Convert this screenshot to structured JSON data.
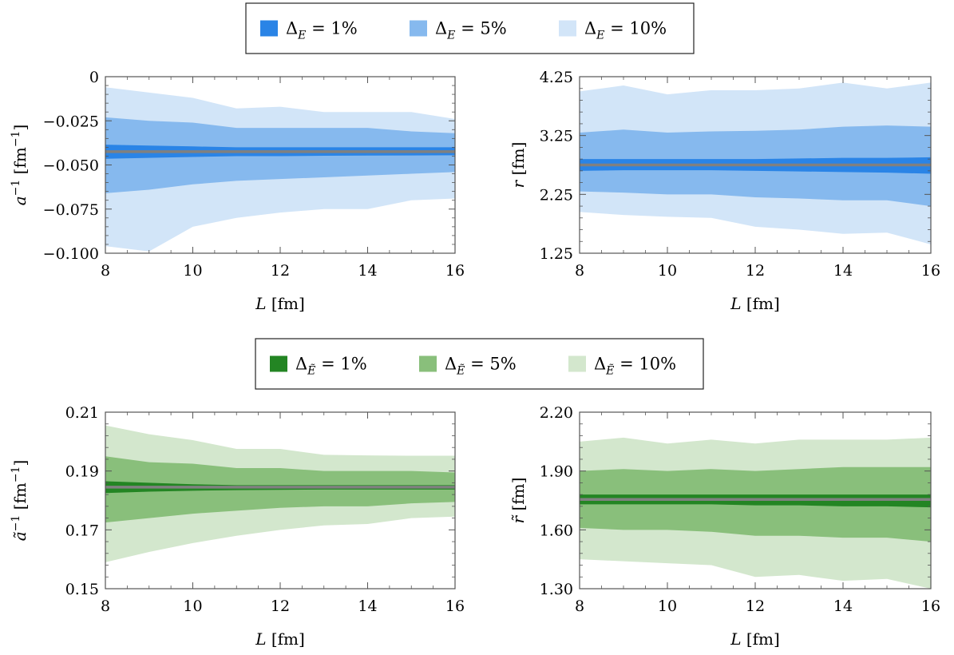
{
  "legends": [
    {
      "items": [
        {
          "label_main": "Δ",
          "label_sub": "E",
          "label_rest": " = 1%",
          "color": "#2a84e6"
        },
        {
          "label_main": "Δ",
          "label_sub": "E",
          "label_rest": " = 5%",
          "color": "#86b9ee"
        },
        {
          "label_main": "Δ",
          "label_sub": "E",
          "label_rest": " = 10%",
          "color": "#d2e5f8"
        }
      ]
    },
    {
      "items": [
        {
          "label_main": "Δ",
          "label_sub": "Ẽ",
          "label_rest": " = 1%",
          "color": "#238523"
        },
        {
          "label_main": "Δ",
          "label_sub": "Ẽ",
          "label_rest": " = 5%",
          "color": "#89bf7b"
        },
        {
          "label_main": "Δ",
          "label_sub": "Ẽ",
          "label_rest": " = 10%",
          "color": "#d3e7cd"
        }
      ]
    }
  ],
  "chart_data": [
    {
      "type": "area",
      "xlabel_var": "L",
      "xlabel_unit": " [fm]",
      "ylabel_var": "a",
      "ylabel_sup": "−1",
      "ylabel_unit": " [fm",
      "ylabel_unit_sup": "−1",
      "ylabel_close": "]",
      "xlim": [
        8,
        16
      ],
      "ylim": [
        -0.1,
        0
      ],
      "xticks": [
        8,
        10,
        12,
        14,
        16
      ],
      "yticks": [
        0,
        -0.025,
        -0.05,
        -0.075,
        -0.1
      ],
      "ytick_labels": [
        "0",
        "−0.025",
        "−0.050",
        "−0.075",
        "−0.100"
      ],
      "x": [
        8,
        9,
        10,
        11,
        12,
        13,
        14,
        15,
        16
      ],
      "central": [
        -0.0425,
        -0.0425,
        -0.0425,
        -0.0425,
        -0.0425,
        -0.0425,
        -0.0425,
        -0.0425,
        -0.0425
      ],
      "central_color": "#808080",
      "bands": [
        {
          "label": "Δ_E = 10%",
          "color": "#d2e5f8",
          "upper": [
            -0.006,
            -0.009,
            -0.012,
            -0.018,
            -0.017,
            -0.02,
            -0.02,
            -0.02,
            -0.024
          ],
          "lower": [
            -0.096,
            -0.099,
            -0.085,
            -0.08,
            -0.077,
            -0.075,
            -0.075,
            -0.07,
            -0.069
          ]
        },
        {
          "label": "Δ_E = 5%",
          "color": "#86b9ee",
          "upper": [
            -0.023,
            -0.025,
            -0.026,
            -0.029,
            -0.029,
            -0.029,
            -0.029,
            -0.031,
            -0.032
          ],
          "lower": [
            -0.066,
            -0.064,
            -0.061,
            -0.059,
            -0.058,
            -0.057,
            -0.056,
            -0.055,
            -0.054
          ]
        },
        {
          "label": "Δ_E = 1%",
          "color": "#2a84e6",
          "upper": [
            -0.0385,
            -0.039,
            -0.0395,
            -0.04,
            -0.04,
            -0.04,
            -0.04,
            -0.04,
            -0.04
          ],
          "lower": [
            -0.0465,
            -0.046,
            -0.0455,
            -0.045,
            -0.045,
            -0.0448,
            -0.0447,
            -0.0446,
            -0.0445
          ]
        }
      ]
    },
    {
      "type": "area",
      "xlabel_var": "L",
      "xlabel_unit": " [fm]",
      "ylabel_var": "r",
      "ylabel_sup": "",
      "ylabel_unit": " [fm]",
      "ylabel_unit_sup": "",
      "ylabel_close": "",
      "xlim": [
        8,
        16
      ],
      "ylim": [
        1.25,
        4.25
      ],
      "xticks": [
        8,
        10,
        12,
        14,
        16
      ],
      "yticks": [
        4.25,
        3.25,
        2.25,
        1.25
      ],
      "ytick_labels": [
        "4.25",
        "3.25",
        "2.25",
        "1.25"
      ],
      "x": [
        8,
        9,
        10,
        11,
        12,
        13,
        14,
        15,
        16
      ],
      "central": [
        2.75,
        2.75,
        2.75,
        2.75,
        2.75,
        2.75,
        2.75,
        2.75,
        2.75
      ],
      "central_color": "#808080",
      "bands": [
        {
          "label": "Δ_E = 10%",
          "color": "#d2e5f8",
          "upper": [
            4.0,
            4.1,
            3.95,
            4.02,
            4.02,
            4.05,
            4.15,
            4.05,
            4.15
          ],
          "lower": [
            1.95,
            1.9,
            1.87,
            1.85,
            1.7,
            1.65,
            1.58,
            1.6,
            1.4
          ]
        },
        {
          "label": "Δ_E = 5%",
          "color": "#86b9ee",
          "upper": [
            3.3,
            3.35,
            3.3,
            3.32,
            3.33,
            3.35,
            3.4,
            3.42,
            3.4
          ],
          "lower": [
            2.3,
            2.28,
            2.25,
            2.25,
            2.2,
            2.18,
            2.15,
            2.15,
            2.05
          ]
        },
        {
          "label": "Δ_E = 1%",
          "color": "#2a84e6",
          "upper": [
            2.85,
            2.85,
            2.85,
            2.85,
            2.85,
            2.86,
            2.87,
            2.87,
            2.88
          ],
          "lower": [
            2.65,
            2.66,
            2.66,
            2.66,
            2.65,
            2.64,
            2.63,
            2.62,
            2.6
          ]
        }
      ]
    },
    {
      "type": "area",
      "xlabel_var": "L",
      "xlabel_unit": " [fm]",
      "ylabel_var": "ã",
      "ylabel_sup": "−1",
      "ylabel_unit": " [fm",
      "ylabel_unit_sup": "−1",
      "ylabel_close": "]",
      "xlim": [
        8,
        16
      ],
      "ylim": [
        0.15,
        0.21
      ],
      "xticks": [
        8,
        10,
        12,
        14,
        16
      ],
      "yticks": [
        0.21,
        0.19,
        0.17,
        0.15
      ],
      "ytick_labels": [
        "0.21",
        "0.19",
        "0.17",
        "0.15"
      ],
      "x": [
        8,
        9,
        10,
        11,
        12,
        13,
        14,
        15,
        16
      ],
      "central": [
        0.1845,
        0.1845,
        0.1845,
        0.1845,
        0.1845,
        0.1845,
        0.1845,
        0.1845,
        0.1845
      ],
      "central_color": "#808080",
      "bands": [
        {
          "label": "Δ_Ẽ = 10%",
          "color": "#d3e7cd",
          "upper": [
            0.2055,
            0.2025,
            0.2005,
            0.1975,
            0.1975,
            0.1955,
            0.1953,
            0.1952,
            0.1952
          ],
          "lower": [
            0.159,
            0.1625,
            0.1655,
            0.168,
            0.17,
            0.1715,
            0.172,
            0.174,
            0.1745
          ]
        },
        {
          "label": "Δ_Ẽ = 5%",
          "color": "#89bf7b",
          "upper": [
            0.195,
            0.193,
            0.1925,
            0.191,
            0.191,
            0.19,
            0.19,
            0.19,
            0.1895
          ],
          "lower": [
            0.1725,
            0.174,
            0.1755,
            0.1765,
            0.1775,
            0.178,
            0.178,
            0.179,
            0.1795
          ]
        },
        {
          "label": "Δ_Ẽ = 1%",
          "color": "#238523",
          "upper": [
            0.1865,
            0.186,
            0.1855,
            0.1852,
            0.1852,
            0.1852,
            0.1852,
            0.1852,
            0.1852
          ],
          "lower": [
            0.1825,
            0.183,
            0.1833,
            0.1835,
            0.1836,
            0.1837,
            0.1837,
            0.1837,
            0.1837
          ]
        }
      ]
    },
    {
      "type": "area",
      "xlabel_var": "L",
      "xlabel_unit": " [fm]",
      "ylabel_var": "r̃",
      "ylabel_sup": "",
      "ylabel_unit": " [fm]",
      "ylabel_unit_sup": "",
      "ylabel_close": "",
      "xlim": [
        8,
        16
      ],
      "ylim": [
        1.3,
        2.2
      ],
      "xticks": [
        8,
        10,
        12,
        14,
        16
      ],
      "yticks": [
        2.2,
        1.9,
        1.6,
        1.3
      ],
      "ytick_labels": [
        "2.20",
        "1.90",
        "1.60",
        "1.30"
      ],
      "x": [
        8,
        9,
        10,
        11,
        12,
        13,
        14,
        15,
        16
      ],
      "central": [
        1.755,
        1.755,
        1.755,
        1.755,
        1.755,
        1.755,
        1.755,
        1.755,
        1.755
      ],
      "central_color": "#808080",
      "bands": [
        {
          "label": "Δ_Ẽ = 10%",
          "color": "#d3e7cd",
          "upper": [
            2.05,
            2.07,
            2.04,
            2.06,
            2.04,
            2.06,
            2.06,
            2.06,
            2.07
          ],
          "lower": [
            1.45,
            1.44,
            1.43,
            1.42,
            1.36,
            1.37,
            1.34,
            1.35,
            1.3
          ]
        },
        {
          "label": "Δ_Ẽ = 5%",
          "color": "#89bf7b",
          "upper": [
            1.9,
            1.91,
            1.9,
            1.91,
            1.9,
            1.91,
            1.92,
            1.92,
            1.92
          ],
          "lower": [
            1.61,
            1.6,
            1.6,
            1.59,
            1.57,
            1.57,
            1.56,
            1.56,
            1.54
          ]
        },
        {
          "label": "Δ_Ẽ = 1%",
          "color": "#238523",
          "upper": [
            1.78,
            1.78,
            1.78,
            1.78,
            1.78,
            1.78,
            1.78,
            1.78,
            1.78
          ],
          "lower": [
            1.73,
            1.73,
            1.73,
            1.73,
            1.725,
            1.725,
            1.72,
            1.72,
            1.715
          ]
        }
      ]
    }
  ]
}
